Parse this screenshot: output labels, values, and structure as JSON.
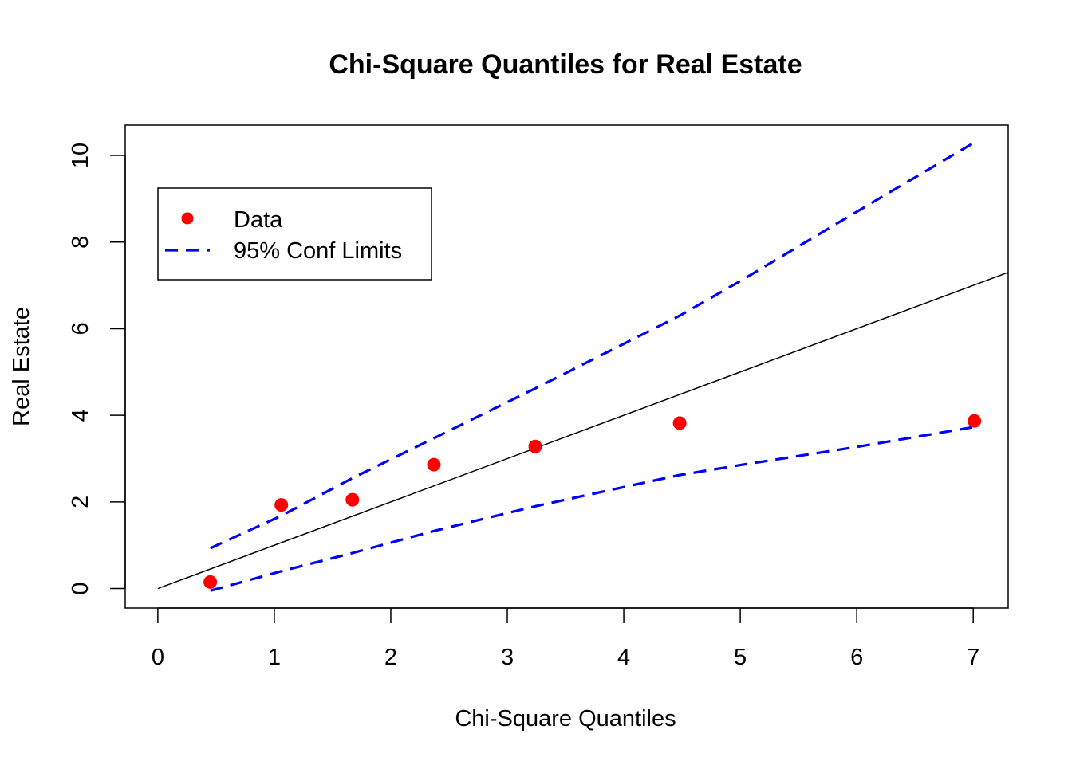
{
  "chart_data": {
    "type": "scatter",
    "title": "Chi-Square Quantiles for Real Estate",
    "xlabel": "Chi-Square Quantiles",
    "ylabel": "Real Estate",
    "xlim": [
      -0.28,
      7.3
    ],
    "ylim": [
      -0.45,
      10.7
    ],
    "x_ticks": [
      "0",
      "1",
      "2",
      "3",
      "4",
      "5",
      "6",
      "7"
    ],
    "y_ticks": [
      "0",
      "2",
      "4",
      "6",
      "8",
      "10"
    ],
    "grid": false,
    "legend_position": "top-left",
    "legend": [
      {
        "label": "Data",
        "marker": "dot",
        "color": "#ff0000"
      },
      {
        "label": "95% Conf Limits",
        "marker": "dashed-line",
        "color": "#0000ff"
      }
    ],
    "reference_line": {
      "slope": 1,
      "intercept": 0,
      "color": "#000000"
    },
    "series": [
      {
        "name": "Data",
        "color": "#ff0000",
        "x": [
          0.45,
          1.06,
          1.67,
          2.37,
          3.24,
          4.48,
          7.01
        ],
        "y": [
          0.15,
          1.93,
          2.05,
          2.86,
          3.28,
          3.82,
          3.87
        ]
      },
      {
        "name": "95% Conf Limits",
        "color": "#0000ff",
        "line_style": "dashed",
        "x": [
          0.45,
          1.06,
          1.67,
          2.37,
          3.24,
          4.48,
          5.0,
          6.0,
          7.01
        ],
        "y": [
          0.93,
          1.68,
          2.55,
          3.47,
          4.62,
          6.3,
          7.1,
          8.7,
          10.3
        ]
      },
      {
        "name": "95% Conf Limits",
        "color": "#0000ff",
        "line_style": "dashed",
        "x": [
          0.45,
          1.06,
          1.67,
          2.37,
          3.24,
          4.48,
          5.0,
          6.0,
          7.01
        ],
        "y": [
          -0.05,
          0.4,
          0.82,
          1.33,
          1.9,
          2.62,
          2.85,
          3.27,
          3.73
        ]
      }
    ]
  }
}
